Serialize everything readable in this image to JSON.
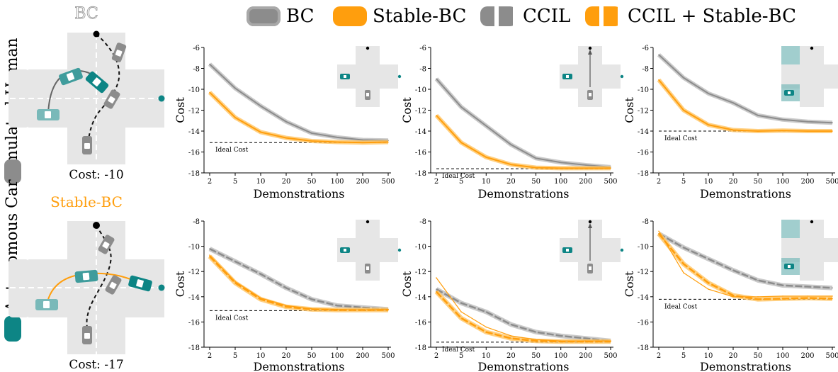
{
  "legend": {
    "bc": "BC",
    "stable_bc": "Stable-BC",
    "ccil": "CCIL",
    "ccil_stable": "CCIL + Stable-BC"
  },
  "colors": {
    "bc": "#8c8c8c",
    "bc_band": "#bdbdbd",
    "stable": "#ff9e0d",
    "stable_band": "#ffc463",
    "teal": "#0d8585",
    "teal_light": "#79b9b9",
    "road": "#e6e6e6"
  },
  "rows": [
    {
      "side_label": "Simulated Human",
      "side_color": "#8c8c8c",
      "scene_title": "BC",
      "scene_title_color": "#9a9a9a",
      "scene_cost": "Cost: -10"
    },
    {
      "side_label": "Autonomous Car",
      "side_color": "#0d8585",
      "scene_title": "Stable-BC",
      "scene_title_color": "#ff9e0d",
      "scene_cost": "Cost: -17"
    }
  ],
  "chart_data": [
    {
      "type": "line",
      "ylabel": "Cost",
      "xlabel": "Demonstrations",
      "categories": [
        "2",
        "5",
        "10",
        "20",
        "50",
        "100",
        "200",
        "500"
      ],
      "ylim": [
        -18,
        -6
      ],
      "yticks": [
        -6,
        -8,
        -10,
        -12,
        -14,
        -16,
        -18
      ],
      "ideal_cost": -15.1,
      "ideal_label": "Ideal Cost",
      "inset": "two-cars",
      "series": [
        {
          "name": "BC",
          "values": [
            -7.6,
            -9.9,
            -11.6,
            -13.1,
            -14.2,
            -14.6,
            -14.85,
            -14.9
          ]
        },
        {
          "name": "Stable-BC",
          "values": [
            -10.3,
            -12.7,
            -14.1,
            -14.65,
            -14.95,
            -15.05,
            -15.1,
            -15.05
          ]
        }
      ]
    },
    {
      "type": "line",
      "ylabel": "Cost",
      "xlabel": "Demonstrations",
      "categories": [
        "2",
        "5",
        "10",
        "20",
        "50",
        "100",
        "200",
        "500"
      ],
      "ylim": [
        -18,
        -6
      ],
      "yticks": [
        -6,
        -8,
        -10,
        -12,
        -14,
        -16,
        -18
      ],
      "ideal_cost": -17.6,
      "ideal_label": "Ideal Cost",
      "inset": "two-cars-arrow",
      "series": [
        {
          "name": "BC",
          "values": [
            -9.0,
            -11.7,
            -13.5,
            -15.3,
            -16.6,
            -17.0,
            -17.25,
            -17.45
          ]
        },
        {
          "name": "Stable-BC",
          "values": [
            -12.5,
            -15.1,
            -16.5,
            -17.2,
            -17.5,
            -17.55,
            -17.55,
            -17.55
          ]
        }
      ]
    },
    {
      "type": "line",
      "ylabel": "Cost",
      "xlabel": "Demonstrations",
      "categories": [
        "2",
        "5",
        "10",
        "20",
        "50",
        "100",
        "200",
        "500"
      ],
      "ylim": [
        -18,
        -6
      ],
      "yticks": [
        -6,
        -8,
        -10,
        -12,
        -14,
        -16,
        -18
      ],
      "ideal_cost": -14.0,
      "ideal_label": "Ideal Cost",
      "inset": "obstacles",
      "series": [
        {
          "name": "BC",
          "values": [
            -6.7,
            -8.9,
            -10.4,
            -11.3,
            -12.5,
            -12.9,
            -13.1,
            -13.2
          ]
        },
        {
          "name": "Stable-BC",
          "values": [
            -9.1,
            -12.0,
            -13.4,
            -13.9,
            -14.0,
            -13.95,
            -14.0,
            -14.0
          ]
        }
      ]
    },
    {
      "type": "line",
      "ylabel": "Cost",
      "xlabel": "Demonstrations",
      "categories": [
        "2",
        "5",
        "10",
        "20",
        "50",
        "100",
        "200",
        "500"
      ],
      "ylim": [
        -18,
        -8
      ],
      "yticks": [
        -8,
        -10,
        -12,
        -14,
        -16,
        -18
      ],
      "ideal_cost": -15.1,
      "ideal_label": "Ideal Cost",
      "inset": "two-cars",
      "series": [
        {
          "name": "CCIL",
          "values": [
            -10.2,
            -11.2,
            -12.2,
            -13.3,
            -14.2,
            -14.7,
            -14.85,
            -15.0
          ]
        },
        {
          "name": "CCIL + Stable-BC",
          "values": [
            -10.8,
            -12.9,
            -14.2,
            -14.8,
            -15.0,
            -15.05,
            -15.05,
            -15.05
          ]
        },
        {
          "name": "Stable-BC",
          "values": [
            -10.7,
            -12.8,
            -14.1,
            -14.7,
            -14.95,
            -15.0,
            -15.05,
            -15.0
          ]
        }
      ]
    },
    {
      "type": "line",
      "ylabel": "Cost",
      "xlabel": "Demonstrations",
      "categories": [
        "2",
        "5",
        "10",
        "20",
        "50",
        "100",
        "200",
        "500"
      ],
      "ylim": [
        -18,
        -8
      ],
      "yticks": [
        -8,
        -10,
        -12,
        -14,
        -16,
        -18
      ],
      "ideal_cost": -17.6,
      "ideal_label": "Ideal Cost",
      "inset": "two-cars-arrow",
      "series": [
        {
          "name": "CCIL",
          "values": [
            -13.4,
            -14.5,
            -15.2,
            -16.2,
            -16.8,
            -17.1,
            -17.3,
            -17.5
          ]
        },
        {
          "name": "CCIL + Stable-BC",
          "values": [
            -13.6,
            -15.7,
            -16.8,
            -17.3,
            -17.5,
            -17.55,
            -17.55,
            -17.55
          ]
        },
        {
          "name": "Stable-BC",
          "values": [
            -12.5,
            -15.2,
            -16.4,
            -17.1,
            -17.4,
            -17.5,
            -17.5,
            -17.5
          ]
        }
      ]
    },
    {
      "type": "line",
      "ylabel": "Cost",
      "xlabel": "Demonstrations",
      "categories": [
        "2",
        "5",
        "10",
        "20",
        "50",
        "100",
        "200",
        "500"
      ],
      "ylim": [
        -18,
        -8
      ],
      "yticks": [
        -8,
        -10,
        -12,
        -14,
        -16,
        -18
      ],
      "ideal_cost": -14.2,
      "ideal_label": "Ideal Cost",
      "inset": "obstacles",
      "series": [
        {
          "name": "CCIL",
          "values": [
            -9.0,
            -10.1,
            -11.0,
            -11.9,
            -12.7,
            -13.1,
            -13.2,
            -13.3
          ]
        },
        {
          "name": "CCIL + Stable-BC",
          "values": [
            -9.0,
            -11.4,
            -12.9,
            -13.9,
            -14.2,
            -14.15,
            -14.1,
            -14.15
          ]
        },
        {
          "name": "Stable-BC",
          "values": [
            -8.8,
            -12.1,
            -13.4,
            -14.0,
            -14.0,
            -13.95,
            -13.95,
            -13.95
          ]
        }
      ]
    }
  ]
}
